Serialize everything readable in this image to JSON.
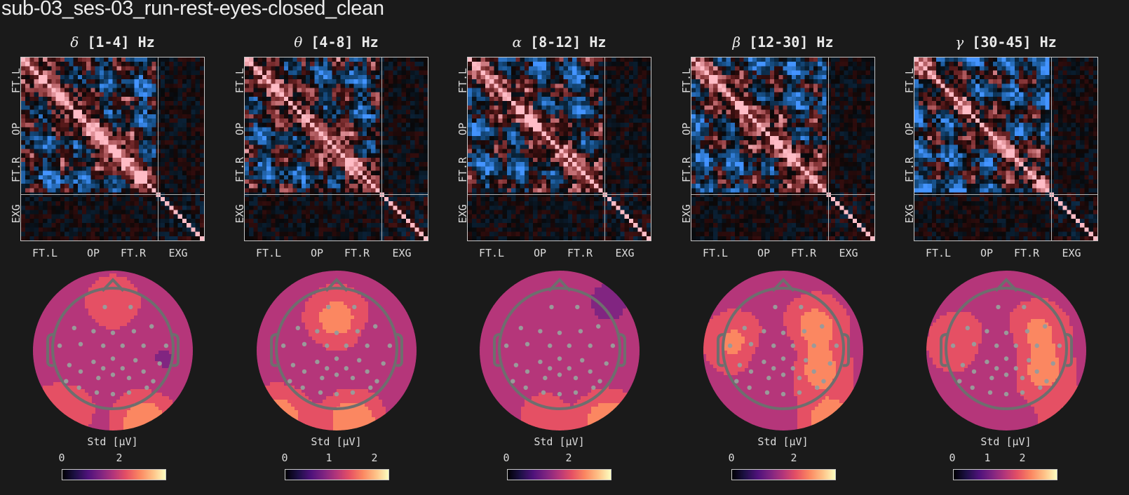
{
  "figure": {
    "title": "sub-03_ses-03_run-rest-eyes-closed_clean",
    "background": "#1a1a1a"
  },
  "chart_data": [
    {
      "type": "heatmap",
      "title": "δ [1-4] Hz",
      "band": {
        "symbol": "δ",
        "range": "[1-4] Hz"
      },
      "xticklabels": [
        "FT.L",
        "OP",
        "FT.R",
        "EXG"
      ],
      "yticklabels": [
        "FT.L",
        "OP",
        "FT.R",
        "EXG"
      ],
      "n_channels": 42,
      "groups": {
        "EEG": 31,
        "EXG": 11
      },
      "colormap": "diverging blue-black-pink",
      "topomap": {
        "colorbar_label": "Std [μV]",
        "colorbar_ticks": [
          "0",
          "2"
        ],
        "vmin": 0,
        "vmax": 2.6,
        "colormap": "magma"
      }
    },
    {
      "type": "heatmap",
      "title": "θ [4-8] Hz",
      "band": {
        "symbol": "θ",
        "range": "[4-8] Hz"
      },
      "xticklabels": [
        "FT.L",
        "OP",
        "FT.R",
        "EXG"
      ],
      "yticklabels": [
        "FT.L",
        "OP",
        "FT.R",
        "EXG"
      ],
      "n_channels": 42,
      "groups": {
        "EEG": 31,
        "EXG": 11
      },
      "colormap": "diverging blue-black-pink",
      "topomap": {
        "colorbar_label": "Std [μV]",
        "colorbar_ticks": [
          "0",
          "1",
          "2"
        ],
        "vmin": 0,
        "vmax": 2.3,
        "colormap": "magma"
      }
    },
    {
      "type": "heatmap",
      "title": "α [8-12] Hz",
      "band": {
        "symbol": "α",
        "range": "[8-12] Hz"
      },
      "xticklabels": [
        "FT.L",
        "OP",
        "FT.R",
        "EXG"
      ],
      "yticklabels": [
        "FT.L",
        "OP",
        "FT.R",
        "EXG"
      ],
      "n_channels": 42,
      "groups": {
        "EEG": 31,
        "EXG": 11
      },
      "colormap": "diverging blue-black-pink",
      "topomap": {
        "colorbar_label": "Std [μV]",
        "colorbar_ticks": [
          "0",
          "2"
        ],
        "vmin": 0,
        "vmax": 3.2,
        "colormap": "magma"
      }
    },
    {
      "type": "heatmap",
      "title": "β [12-30] Hz",
      "band": {
        "symbol": "β",
        "range": "[12-30] Hz"
      },
      "xticklabels": [
        "FT.L",
        "OP",
        "FT.R",
        "EXG"
      ],
      "yticklabels": [
        "FT.L",
        "OP",
        "FT.R",
        "EXG"
      ],
      "n_channels": 42,
      "groups": {
        "EEG": 31,
        "EXG": 11
      },
      "colormap": "diverging blue-black-pink",
      "topomap": {
        "colorbar_label": "Std [μV]",
        "colorbar_ticks": [
          "0",
          "2"
        ],
        "vmin": 0,
        "vmax": 3.1,
        "colormap": "magma"
      }
    },
    {
      "type": "heatmap",
      "title": "γ [30-45] Hz",
      "band": {
        "symbol": "γ",
        "range": "[30-45] Hz"
      },
      "xticklabels": [
        "FT.L",
        "OP",
        "FT.R",
        "EXG"
      ],
      "yticklabels": [
        "FT.L",
        "OP",
        "FT.R",
        "EXG"
      ],
      "n_channels": 42,
      "groups": {
        "EEG": 31,
        "EXG": 11
      },
      "colormap": "diverging blue-black-pink",
      "topomap": {
        "colorbar_label": "Std [μV]",
        "colorbar_ticks": [
          "0",
          "1",
          "2"
        ],
        "vmin": 0,
        "vmax": 3.0,
        "colormap": "magma"
      }
    }
  ],
  "panels": [
    {
      "greek": "δ",
      "range": "[1-4] Hz",
      "cb_label": "Std [μV]",
      "cb_ticks": [
        "0",
        "2"
      ]
    },
    {
      "greek": "θ",
      "range": "[4-8] Hz",
      "cb_label": "Std [μV]",
      "cb_ticks": [
        "0",
        "1",
        "2"
      ]
    },
    {
      "greek": "α",
      "range": "[8-12] Hz",
      "cb_label": "Std [μV]",
      "cb_ticks": [
        "0",
        "2"
      ]
    },
    {
      "greek": "β",
      "range": "[12-30] Hz",
      "cb_label": "Std [μV]",
      "cb_ticks": [
        "0",
        "2"
      ]
    },
    {
      "greek": "γ",
      "range": "[30-45] Hz",
      "cb_label": "Std [μV]",
      "cb_ticks": [
        "0",
        "1",
        "2"
      ]
    }
  ],
  "axis_labels": {
    "ft_l": "FT.L",
    "op": "OP",
    "ft_r": "FT.R",
    "exg": "EXG"
  }
}
